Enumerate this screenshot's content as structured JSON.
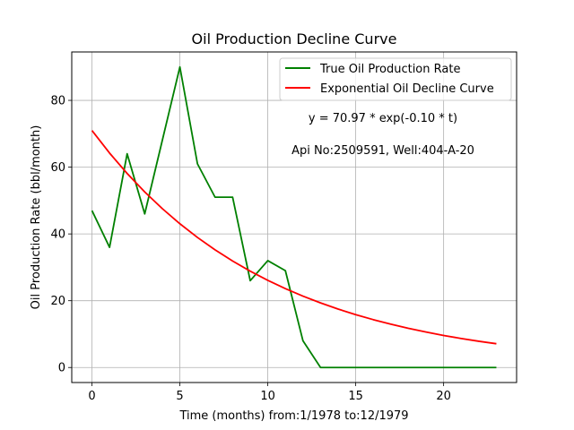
{
  "chart_data": {
    "type": "line",
    "title": "Oil Production Decline Curve",
    "xlabel": "Time (months) from:1/1978 to:12/1979",
    "ylabel": "Oil Production Rate (bbl/month)",
    "xlim": [
      -1.15,
      24.15
    ],
    "ylim": [
      -4.5,
      94.5
    ],
    "xticks": [
      0,
      5,
      10,
      15,
      20
    ],
    "yticks": [
      0,
      20,
      40,
      60,
      80
    ],
    "grid": true,
    "legend_position": "upper right",
    "x": [
      0,
      1,
      2,
      3,
      4,
      5,
      6,
      7,
      8,
      9,
      10,
      11,
      12,
      13,
      14,
      15,
      16,
      17,
      18,
      19,
      20,
      21,
      22,
      23
    ],
    "series": [
      {
        "name": "True Oil Production Rate",
        "color": "#008000",
        "values": [
          47,
          36,
          64,
          46,
          68,
          90,
          61,
          51,
          51,
          26,
          32,
          29,
          8,
          0,
          0,
          0,
          0,
          0,
          0,
          0,
          0,
          0,
          0,
          0
        ]
      },
      {
        "name": "Exponential Oil Decline Curve",
        "color": "#ff0000",
        "values": [
          70.97,
          64.22,
          58.11,
          52.58,
          47.58,
          43.05,
          38.95,
          35.24,
          31.89,
          28.85,
          26.11,
          23.62,
          21.38,
          19.34,
          17.5,
          15.83,
          14.33,
          12.97,
          11.73,
          10.61,
          9.6,
          8.69,
          7.86,
          7.12
        ]
      }
    ],
    "annotations": [
      "y = 70.97 * exp(-0.10 * t)",
      "Api No:2509591, Well:404-A-20"
    ]
  }
}
